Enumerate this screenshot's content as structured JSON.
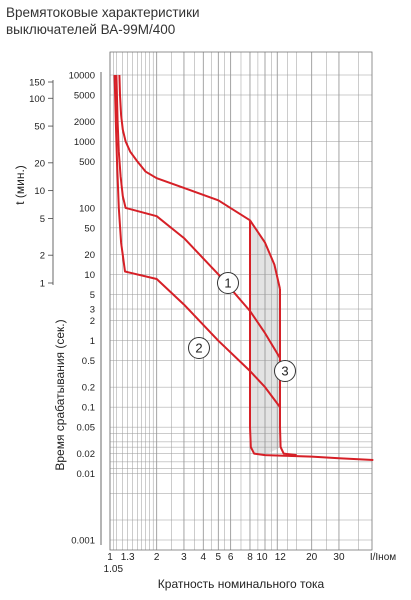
{
  "title_lines": [
    "Времятоковые характеристики",
    "выключателей ВА-99М/400"
  ],
  "chart_data": {
    "type": "line",
    "title": "Времятоковые характеристики выключателей ВА-99М/400",
    "xlabel": "Кратность номинального тока",
    "xunit": "I/Iном",
    "ylabel": "Время срабатывания (сек.)",
    "ylabel_minutes": "t (мин.)",
    "xscale": "log",
    "yscale": "log",
    "xlim": [
      1,
      50
    ],
    "ylim": [
      0.001,
      10000
    ],
    "grid": true,
    "x_ticks": [
      "1",
      "1.05",
      "1.3",
      "2",
      "3",
      "4",
      "5",
      "6",
      "8",
      "10",
      "12",
      "20",
      "30"
    ],
    "y_ticks_seconds": [
      "0.001",
      "0.01",
      "0.02",
      "0.05",
      "0.1",
      "0.2",
      "0.5",
      "1",
      "2",
      "3",
      "5",
      "10",
      "20",
      "50",
      "100",
      "500",
      "1000",
      "2000",
      "5000",
      "10000"
    ],
    "y_ticks_minutes": [
      "1",
      "2",
      "5",
      "10",
      "20",
      "50",
      "100",
      "150"
    ],
    "curve_labels": [
      "1",
      "2",
      "3"
    ],
    "colors": {
      "curve": "#d62027",
      "shade": "#e3e3e3",
      "grid": "#9a9a9a",
      "label_fill": "#ffffff"
    },
    "series": [
      {
        "label": "1",
        "x": [
          1.15,
          1.16,
          1.18,
          1.21,
          1.26,
          1.35,
          1.5,
          1.7,
          2,
          3,
          5,
          8,
          10,
          11.5,
          12.5
        ],
        "y": [
          10000,
          5000,
          2500,
          1500,
          1000,
          700,
          500,
          350,
          280,
          200,
          130,
          65,
          30,
          14,
          6
        ]
      },
      {
        "label": "2-upper",
        "x": [
          1.1,
          1.12,
          1.14,
          1.17,
          1.21,
          1.26,
          2,
          3,
          5,
          8,
          10,
          12.5
        ],
        "y": [
          10000,
          2000,
          700,
          300,
          150,
          100,
          75,
          35,
          10,
          2.8,
          1.3,
          0.55
        ]
      },
      {
        "label": "2-lower",
        "x": [
          1.07,
          1.09,
          1.11,
          1.14,
          1.18,
          1.25,
          2,
          3,
          5,
          8,
          10,
          12.5
        ],
        "y": [
          10000,
          2000,
          500,
          100,
          30,
          11,
          8.5,
          3.5,
          1,
          0.35,
          0.2,
          0.1
        ]
      },
      {
        "label": "3-left",
        "x": [
          8,
          8,
          8,
          8.1,
          8.5,
          10,
          20,
          30,
          50
        ],
        "y": [
          65,
          5,
          0.05,
          0.025,
          0.02,
          0.019,
          0.018,
          0.017,
          0.016
        ]
      },
      {
        "label": "3-right",
        "x": [
          12.5,
          12.5,
          12.5,
          12.6,
          13.2,
          16
        ],
        "y": [
          6,
          1,
          0.05,
          0.025,
          0.02,
          0.019
        ]
      }
    ]
  }
}
